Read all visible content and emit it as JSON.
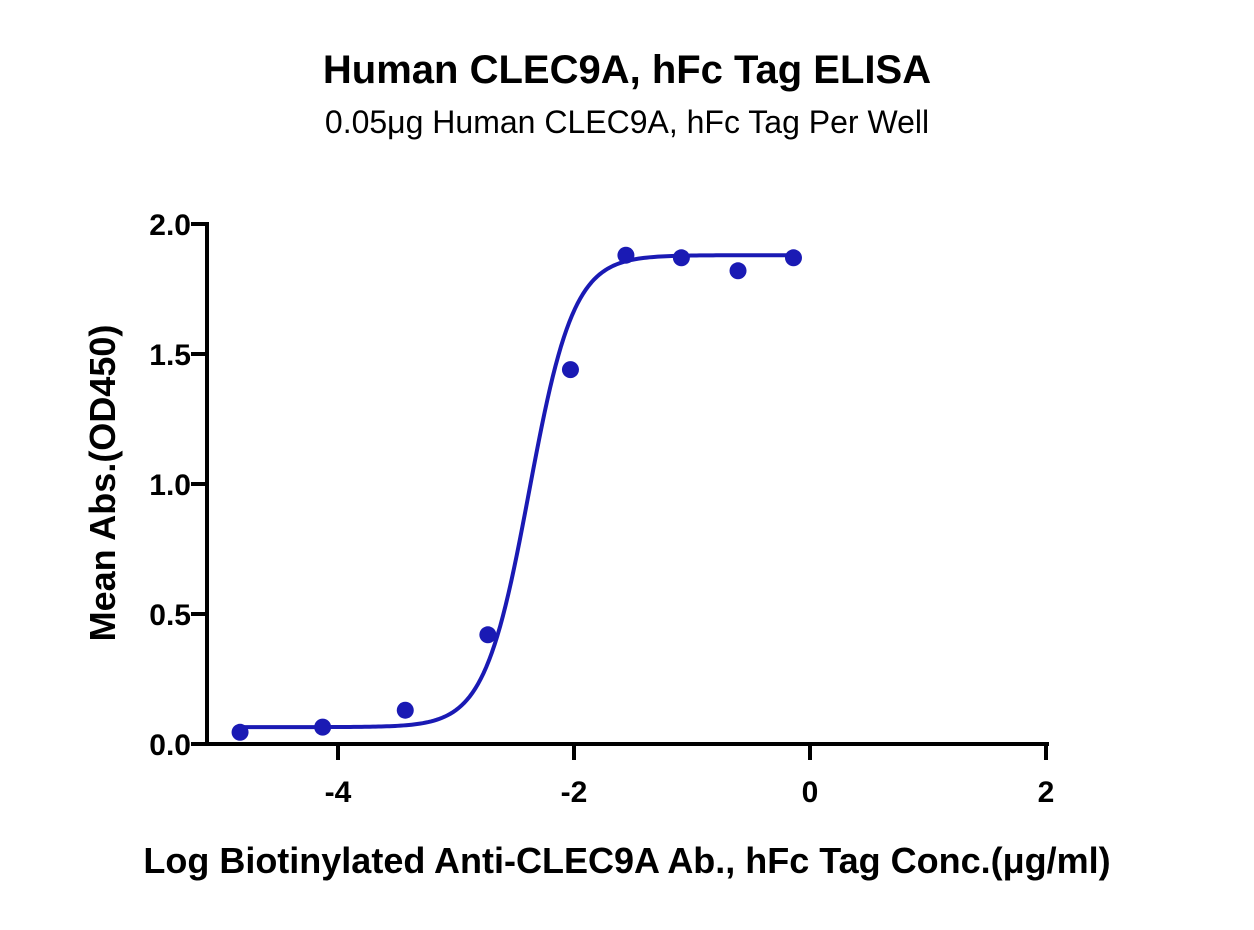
{
  "chart_data": {
    "type": "scatter",
    "title": "Human CLEC9A, hFc Tag ELISA",
    "subtitle": "0.05μg Human CLEC9A, hFc Tag Per Well",
    "xlabel": "Log Biotinylated Anti-CLEC9A Ab., hFc Tag Conc.(μg/ml)",
    "ylabel": "Mean Abs.(OD450)",
    "xlim": [
      -5.0,
      2.0
    ],
    "ylim": [
      0.0,
      2.0
    ],
    "xticks": [
      -4,
      -2,
      0,
      2
    ],
    "xtick_labels": [
      "-4",
      "-2",
      "0",
      "2"
    ],
    "yticks": [
      0.0,
      0.5,
      1.0,
      1.5,
      2.0
    ],
    "ytick_labels": [
      "0.0",
      "0.5",
      "1.0",
      "1.5",
      "2.0"
    ],
    "grid": false,
    "color": "#1a1ab4",
    "series": [
      {
        "x": [
          -4.83,
          -4.13,
          -3.43,
          -2.73,
          -2.03,
          -1.56,
          -1.09,
          -0.61,
          -0.14
        ],
        "y": [
          0.045,
          0.065,
          0.13,
          0.42,
          1.44,
          1.88,
          1.87,
          1.82,
          1.87
        ]
      }
    ],
    "fit_curve": {
      "model": "4PL",
      "bottom": 0.065,
      "top": 1.88,
      "logEC50": -2.38,
      "hill": 2.3,
      "x_range": [
        -4.83,
        -0.14
      ]
    }
  }
}
